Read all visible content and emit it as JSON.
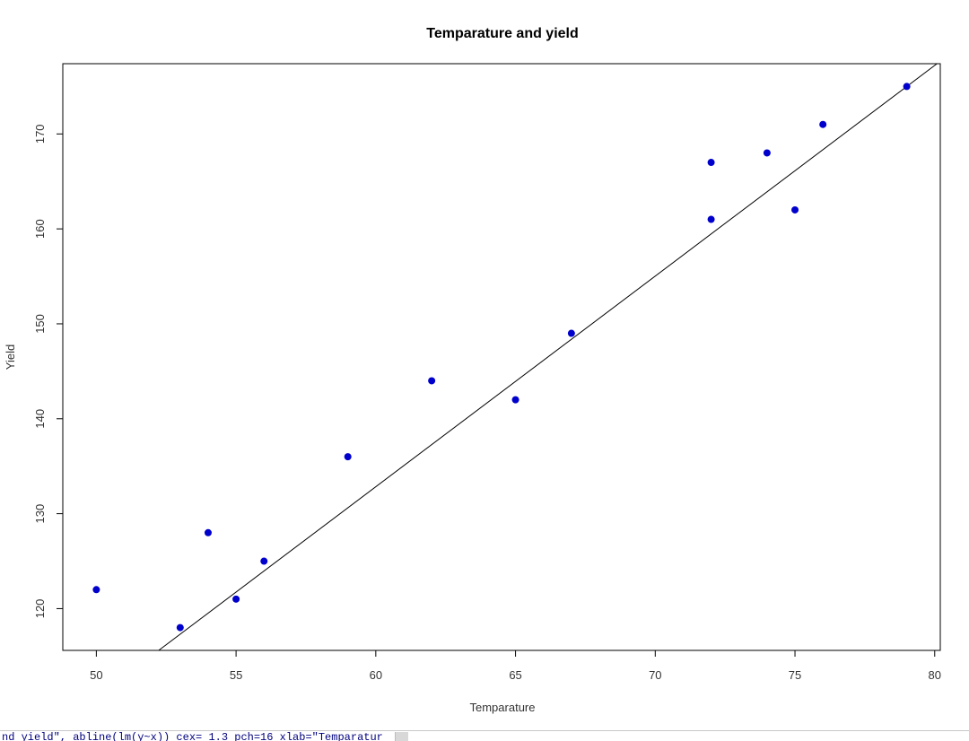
{
  "chart_data": {
    "type": "scatter",
    "title": "Temparature and yield",
    "xlabel": "Temparature",
    "ylabel": "Yield",
    "xlim": [
      48.8,
      80.2
    ],
    "ylim": [
      115.6,
      177.4
    ],
    "xticks": [
      50,
      55,
      60,
      65,
      70,
      75,
      80
    ],
    "yticks": [
      120,
      130,
      140,
      150,
      160,
      170
    ],
    "grid": false,
    "point_color": "#0000cd",
    "line_color": "#000000",
    "points": [
      {
        "x": 50,
        "y": 122
      },
      {
        "x": 53,
        "y": 118
      },
      {
        "x": 54,
        "y": 128
      },
      {
        "x": 55,
        "y": 121
      },
      {
        "x": 56,
        "y": 125
      },
      {
        "x": 59,
        "y": 136
      },
      {
        "x": 62,
        "y": 144
      },
      {
        "x": 65,
        "y": 142
      },
      {
        "x": 67,
        "y": 149
      },
      {
        "x": 72,
        "y": 167
      },
      {
        "x": 72,
        "y": 161
      },
      {
        "x": 74,
        "y": 168
      },
      {
        "x": 75,
        "y": 162
      },
      {
        "x": 76,
        "y": 171
      },
      {
        "x": 79,
        "y": 175
      }
    ],
    "fit_line": {
      "intercept": -0.3,
      "slope": 2.219
    }
  },
  "console": {
    "text": "nd yield\", abline(lm(y~x)) cex= 1.3 pch=16 xlab=\"Temparatur"
  }
}
